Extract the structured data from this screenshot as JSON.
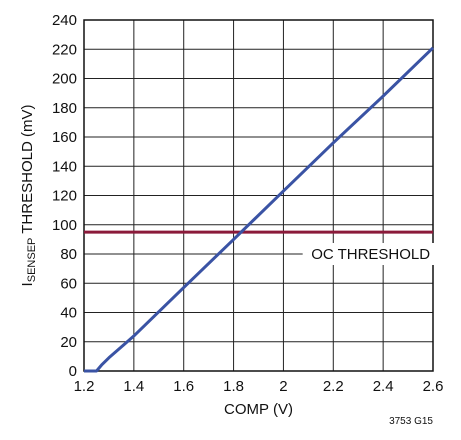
{
  "chart_data": {
    "type": "line",
    "xlabel": "COMP (V)",
    "ylabel_main": "I",
    "ylabel_sub": "SENSEP",
    "ylabel_rest": " THRESHOLD (mV)",
    "xlim": [
      1.2,
      2.6
    ],
    "ylim": [
      0,
      240
    ],
    "x_ticks": [
      1.2,
      1.4,
      1.6,
      1.8,
      2,
      2.2,
      2.4,
      2.6
    ],
    "x_tick_labels": [
      "1.2",
      "1.4",
      "1.6",
      "1.8",
      "2",
      "2.2",
      "2.4",
      "2.6"
    ],
    "y_ticks": [
      0,
      20,
      40,
      60,
      80,
      100,
      120,
      140,
      160,
      180,
      200,
      220,
      240
    ],
    "y_tick_labels": [
      "0",
      "20",
      "40",
      "60",
      "80",
      "100",
      "120",
      "140",
      "160",
      "180",
      "200",
      "220",
      "240"
    ],
    "grid": true,
    "series": [
      {
        "color": "#3a53a4",
        "x": [
          1.2,
          1.23,
          1.25,
          1.27,
          1.3,
          1.4,
          1.6,
          1.8,
          2.0,
          2.2,
          2.4,
          2.6
        ],
        "y": [
          0,
          0,
          0,
          4,
          9,
          24,
          57,
          90,
          123,
          156,
          188,
          221
        ]
      }
    ],
    "reference_line": {
      "y": 95,
      "color": "#8b1a3a",
      "label": "OC THRESHOLD"
    },
    "figure_id": "3753 G15"
  }
}
